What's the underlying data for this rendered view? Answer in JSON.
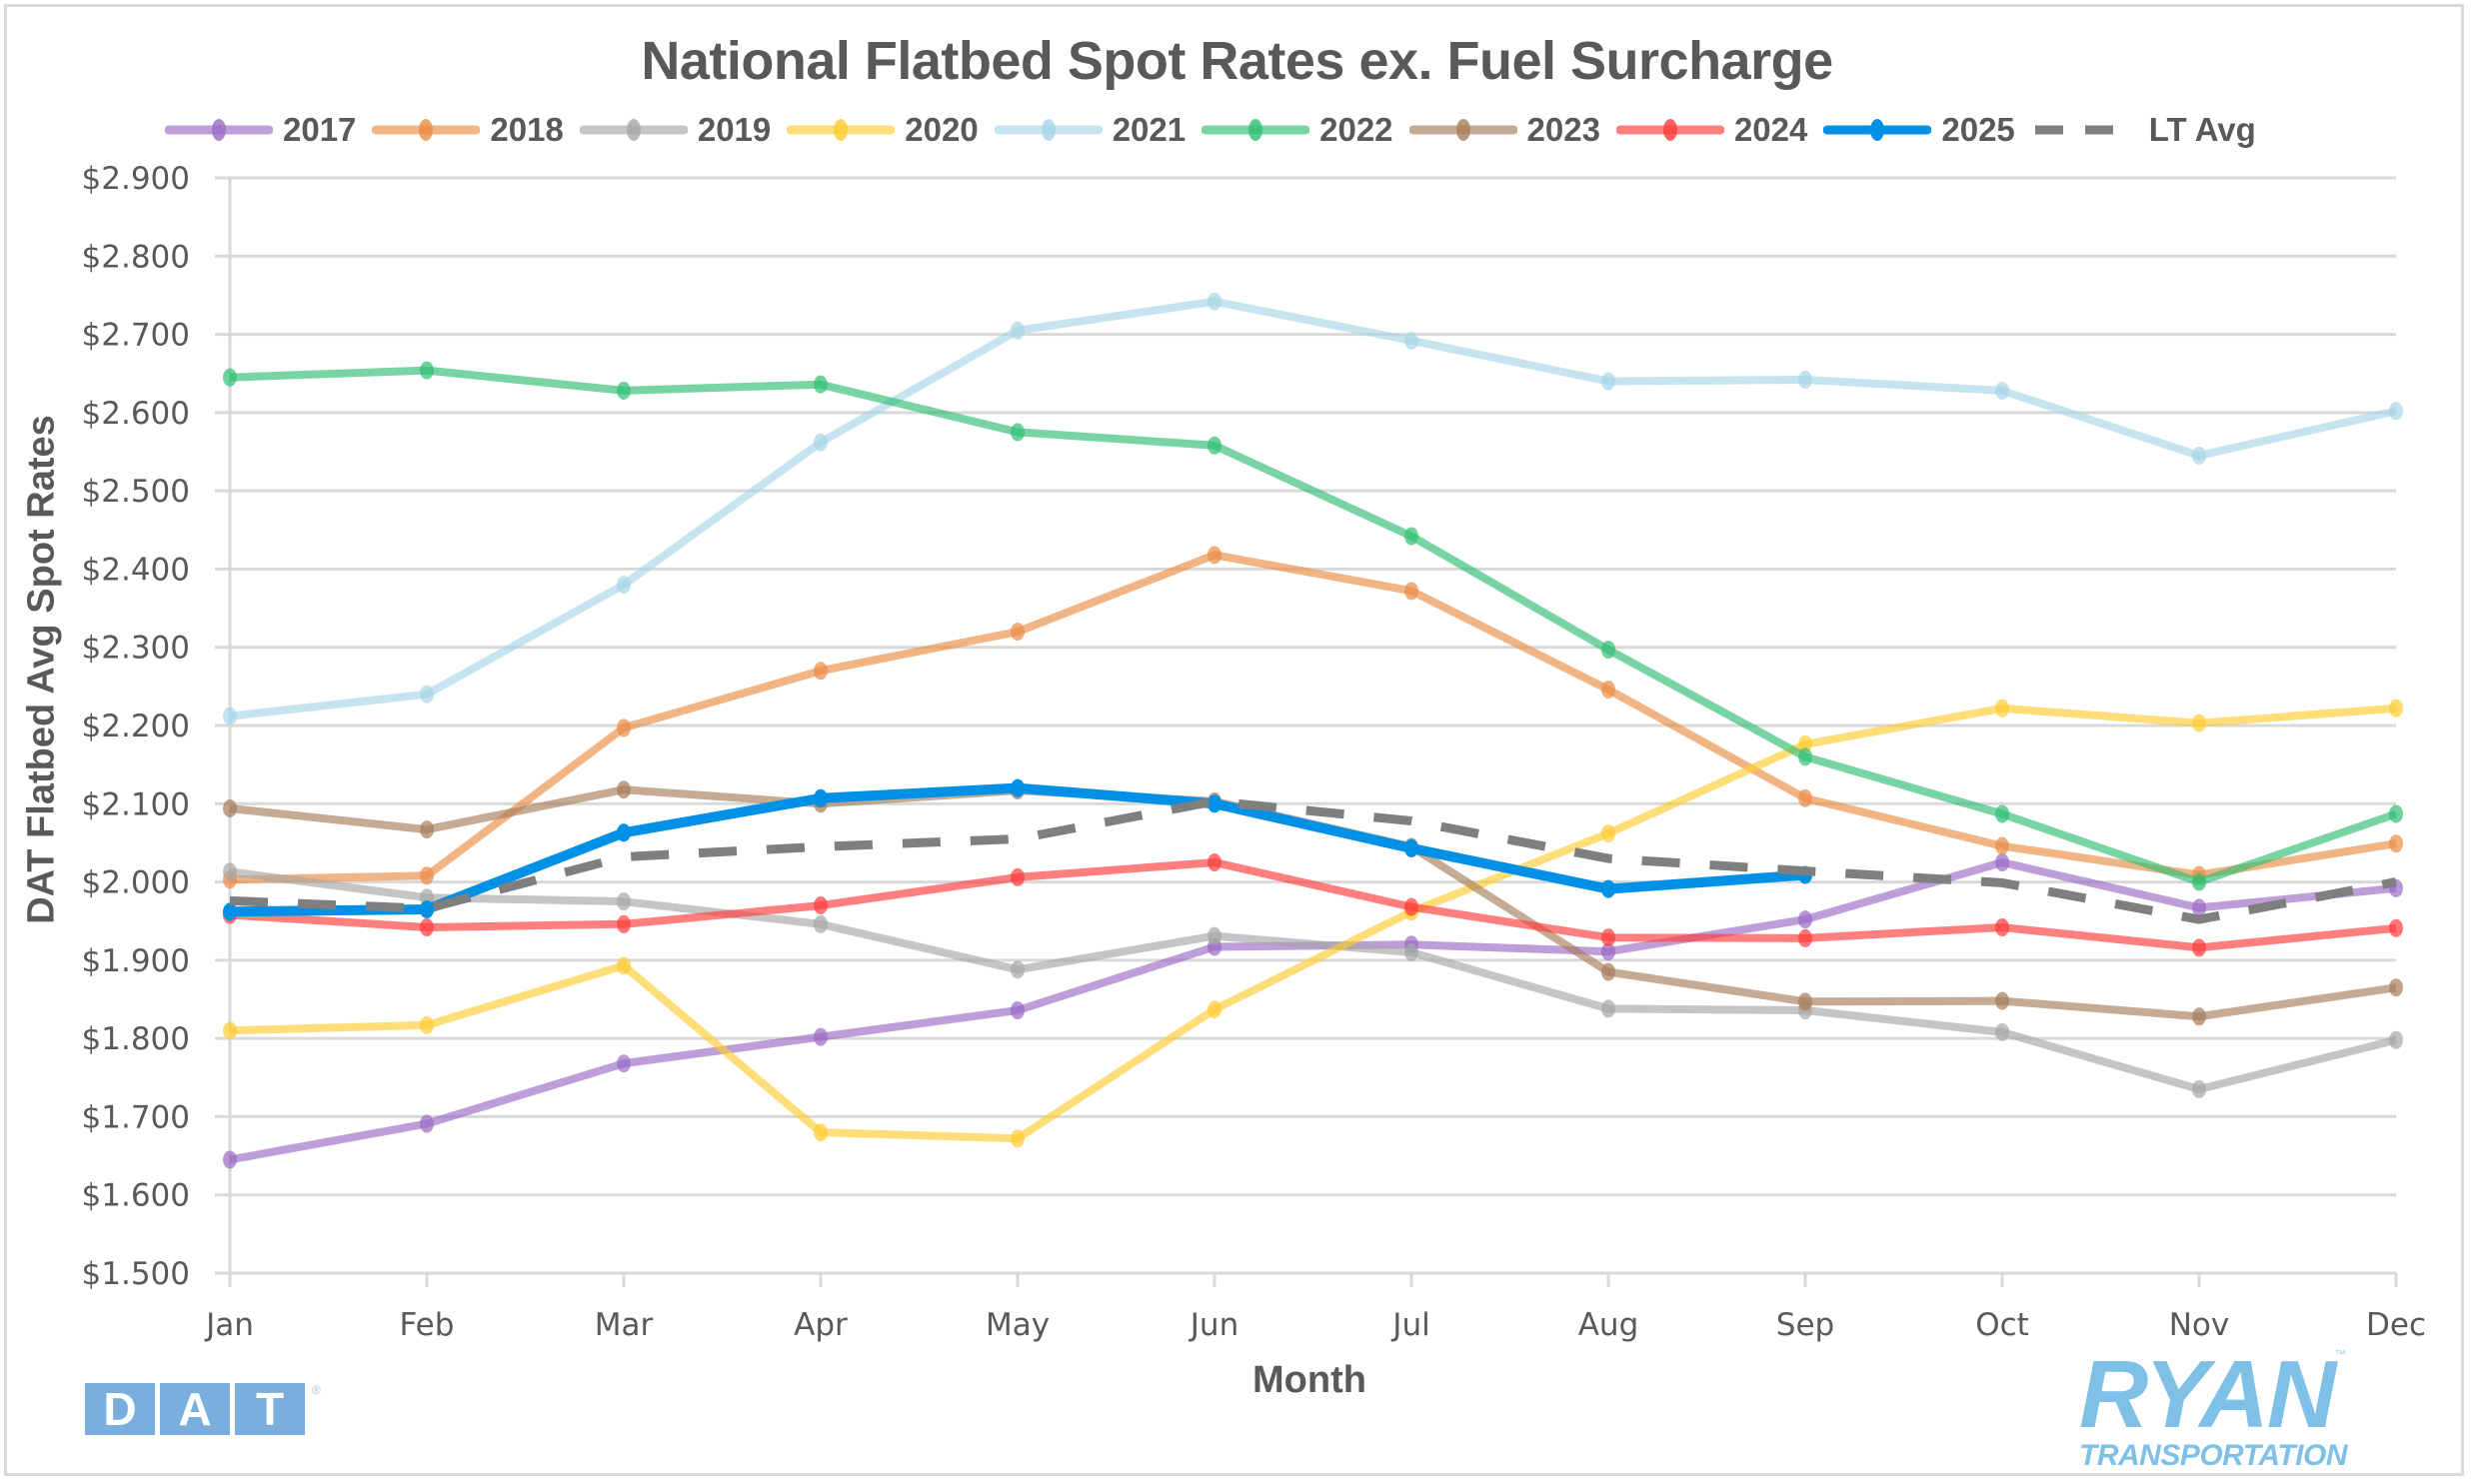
{
  "chart_data": {
    "type": "line",
    "title": "National Flatbed Spot Rates ex. Fuel Surcharge",
    "xlabel": "Month",
    "ylabel": "DAT Flatbed Avg Spot Rates",
    "categories": [
      "Jan",
      "Feb",
      "Mar",
      "Apr",
      "May",
      "Jun",
      "Jul",
      "Aug",
      "Sep",
      "Oct",
      "Nov",
      "Dec"
    ],
    "ylim": [
      1.5,
      2.9
    ],
    "ytick_step": 0.1,
    "ytick_labels": [
      "$1.500",
      "$1.600",
      "$1.700",
      "$1.800",
      "$1.900",
      "$2.000",
      "$2.100",
      "$2.200",
      "$2.300",
      "$2.400",
      "$2.500",
      "$2.600",
      "$2.700",
      "$2.800",
      "$2.900"
    ],
    "grid": "horizontal",
    "legend_position": "top",
    "series": [
      {
        "name": "2017",
        "color": "#9a6ac4",
        "style": "solid-marker",
        "values": [
          1.645,
          1.691,
          1.768,
          1.802,
          1.836,
          1.917,
          1.92,
          1.911,
          1.952,
          2.025,
          1.967,
          1.992
        ]
      },
      {
        "name": "2018",
        "color": "#ea8c44",
        "style": "solid-marker",
        "values": [
          2.003,
          2.008,
          2.197,
          2.27,
          2.32,
          2.418,
          2.372,
          2.246,
          2.107,
          2.046,
          2.009,
          2.049
        ]
      },
      {
        "name": "2019",
        "color": "#a6a6a6",
        "style": "solid-marker",
        "values": [
          2.013,
          1.98,
          1.975,
          1.946,
          1.888,
          1.931,
          1.91,
          1.838,
          1.836,
          1.808,
          1.735,
          1.798
        ]
      },
      {
        "name": "2020",
        "color": "#ffcc33",
        "style": "solid-marker",
        "values": [
          1.81,
          1.817,
          1.893,
          1.68,
          1.672,
          1.837,
          1.962,
          2.062,
          2.176,
          2.222,
          2.203,
          2.222
        ]
      },
      {
        "name": "2021",
        "color": "#a8d5e6",
        "style": "solid-marker",
        "values": [
          2.212,
          2.24,
          2.38,
          2.562,
          2.705,
          2.742,
          2.692,
          2.64,
          2.642,
          2.628,
          2.545,
          2.602
        ]
      },
      {
        "name": "2022",
        "color": "#2fbf71",
        "style": "solid-marker",
        "values": [
          2.645,
          2.654,
          2.628,
          2.636,
          2.575,
          2.558,
          2.442,
          2.297,
          2.16,
          2.087,
          2.0,
          2.087
        ]
      },
      {
        "name": "2023",
        "color": "#a67c5b",
        "style": "solid-marker",
        "values": [
          2.094,
          2.067,
          2.118,
          2.1,
          2.117,
          2.103,
          2.045,
          1.885,
          1.847,
          1.848,
          1.828,
          1.865
        ]
      },
      {
        "name": "2024",
        "color": "#ff3b3b",
        "style": "solid-marker",
        "values": [
          1.958,
          1.942,
          1.946,
          1.97,
          2.006,
          2.025,
          1.968,
          1.929,
          1.928,
          1.942,
          1.916,
          1.941
        ]
      },
      {
        "name": "2025",
        "color": "#0090e6",
        "style": "bold-marker",
        "values": [
          1.962,
          1.965,
          2.063,
          2.107,
          2.12,
          2.1,
          2.043,
          1.991,
          2.009
        ]
      },
      {
        "name": "LT Avg",
        "color": "#7f7f7f",
        "style": "dashed",
        "values": [
          1.976,
          1.966,
          2.032,
          2.045,
          2.055,
          2.103,
          2.078,
          2.03,
          2.014,
          1.999,
          1.952,
          2.0
        ]
      }
    ]
  },
  "logos": {
    "dat_letters": [
      "D",
      "A",
      "T"
    ],
    "dat_mark": "®",
    "ryan_main": "RYAN",
    "ryan_tm": "™",
    "ryan_sub": "TRANSPORTATION"
  }
}
